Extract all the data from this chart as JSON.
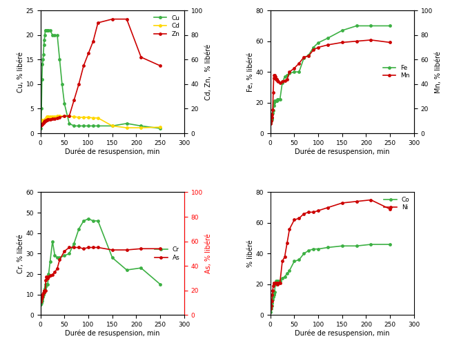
{
  "subplot1": {
    "xlabel": "Durée de resuspension, min",
    "ylabel_left": "Cu, % libéré",
    "ylabel_right": "Cd, Zn,  % libéré",
    "xlim": [
      0,
      300
    ],
    "ylim_left": [
      0,
      25
    ],
    "ylim_right": [
      0,
      100
    ],
    "yticks_left": [
      0,
      5,
      10,
      15,
      20,
      25
    ],
    "yticks_right": [
      0,
      20,
      40,
      60,
      80,
      100
    ],
    "Cu": {
      "x": [
        1,
        2,
        3,
        4,
        5,
        6,
        7,
        8,
        9,
        10,
        11,
        12,
        13,
        14,
        15,
        17,
        20,
        25,
        30,
        35,
        40,
        45,
        50,
        60,
        70,
        80,
        90,
        100,
        110,
        120,
        150,
        180,
        210,
        250
      ],
      "y": [
        1,
        5,
        11,
        14,
        15,
        16,
        18,
        19,
        20,
        21,
        21,
        21,
        21,
        21,
        21,
        21,
        21,
        20,
        20,
        20,
        15,
        10,
        6,
        2,
        1.5,
        1.5,
        1.5,
        1.5,
        1.5,
        1.5,
        1.5,
        2,
        1.5,
        1
      ],
      "color": "#3cb043",
      "label": "Cu"
    },
    "Cd": {
      "x": [
        1,
        2,
        3,
        4,
        5,
        6,
        7,
        8,
        9,
        10,
        11,
        12,
        13,
        14,
        15,
        17,
        20,
        25,
        30,
        35,
        40,
        50,
        60,
        70,
        80,
        90,
        100,
        110,
        120,
        150,
        180,
        210,
        250
      ],
      "y": [
        11,
        11,
        10.5,
        10,
        10,
        10,
        10.5,
        11,
        11.5,
        11.5,
        12,
        12.5,
        13,
        13.5,
        13.5,
        13.5,
        13.5,
        13.5,
        13.5,
        14,
        14,
        14,
        14,
        13.5,
        13,
        13,
        13,
        12.5,
        12.5,
        6,
        4.5,
        4.5,
        5
      ],
      "color": "#FFD700",
      "label": "Cd"
    },
    "Zn": {
      "x": [
        1,
        2,
        3,
        4,
        5,
        6,
        7,
        8,
        9,
        10,
        11,
        12,
        13,
        14,
        15,
        17,
        20,
        25,
        30,
        35,
        40,
        50,
        60,
        70,
        80,
        90,
        100,
        110,
        120,
        150,
        180,
        210,
        250
      ],
      "y": [
        6,
        7,
        7.5,
        7.5,
        8,
        8.5,
        9,
        9.5,
        10,
        10,
        10,
        10.5,
        11,
        11,
        11.5,
        11.5,
        11.5,
        12,
        12,
        12.5,
        13,
        14,
        14,
        27,
        40,
        55,
        65,
        75,
        90,
        93,
        93,
        62,
        55
      ],
      "color": "#cc0000",
      "label": "Zn"
    }
  },
  "subplot2": {
    "xlabel": "Durée de resuspension, min",
    "ylabel_left": "Fe, % libéré",
    "ylabel_right": "Mn, % libéré",
    "xlim": [
      0,
      300
    ],
    "ylim_left": [
      0,
      80
    ],
    "ylim_right": [
      0,
      100
    ],
    "yticks_left": [
      0,
      20,
      40,
      60,
      80
    ],
    "yticks_right": [
      0,
      20,
      40,
      60,
      80,
      100
    ],
    "Fe": {
      "x": [
        1,
        2,
        3,
        4,
        5,
        6,
        7,
        8,
        9,
        10,
        11,
        12,
        13,
        14,
        15,
        17,
        20,
        25,
        30,
        35,
        40,
        50,
        60,
        70,
        80,
        90,
        100,
        120,
        150,
        180,
        210,
        250
      ],
      "y": [
        7,
        8,
        9,
        10,
        13,
        15,
        18,
        20,
        21,
        21,
        21,
        21,
        21,
        21,
        22,
        22,
        22,
        33,
        37,
        38,
        39,
        40,
        40,
        49,
        51,
        56,
        59,
        62,
        67,
        70,
        70,
        70
      ],
      "color": "#3cb043",
      "label": "Fe"
    },
    "Mn": {
      "x": [
        1,
        2,
        3,
        4,
        5,
        6,
        7,
        8,
        9,
        10,
        11,
        12,
        13,
        14,
        15,
        17,
        20,
        25,
        30,
        35,
        40,
        50,
        60,
        70,
        80,
        90,
        100,
        120,
        150,
        180,
        210,
        250
      ],
      "y": [
        8,
        10,
        13,
        15,
        19,
        33,
        45,
        47,
        47,
        46,
        45,
        44,
        44,
        44,
        43,
        42,
        41,
        42,
        43,
        44,
        50,
        53,
        57,
        62,
        63,
        68,
        70,
        72,
        74,
        75,
        76,
        74
      ],
      "color": "#cc0000",
      "label": "Mn"
    }
  },
  "subplot3": {
    "xlabel": "Durée de resuspension, min",
    "ylabel_left": "Cr, % libéré",
    "ylabel_right": "As, % libéré",
    "xlim": [
      0,
      300
    ],
    "ylim_left": [
      0,
      60
    ],
    "ylim_right": [
      0,
      100
    ],
    "yticks_left": [
      0,
      10,
      20,
      30,
      40,
      50,
      60
    ],
    "yticks_right": [
      0,
      20,
      40,
      60,
      80,
      100
    ],
    "Cr": {
      "x": [
        1,
        2,
        3,
        4,
        5,
        6,
        7,
        8,
        9,
        10,
        11,
        12,
        13,
        14,
        15,
        17,
        20,
        25,
        30,
        35,
        40,
        50,
        60,
        70,
        80,
        90,
        100,
        110,
        120,
        150,
        180,
        210,
        250
      ],
      "y": [
        5,
        6,
        7,
        8,
        9,
        10,
        11,
        12,
        13,
        14,
        15,
        15,
        15,
        15,
        15,
        20,
        26,
        36,
        29,
        28,
        28,
        29,
        30,
        35,
        42,
        46,
        47,
        46,
        46,
        28,
        22,
        23,
        15
      ],
      "color": "#3cb043",
      "label": "Cr"
    },
    "As": {
      "x": [
        1,
        2,
        3,
        4,
        5,
        6,
        7,
        8,
        9,
        10,
        11,
        12,
        13,
        14,
        15,
        17,
        20,
        25,
        30,
        35,
        40,
        50,
        60,
        70,
        80,
        90,
        100,
        110,
        120,
        150,
        180,
        210,
        250
      ],
      "y": [
        11,
        13,
        15,
        16,
        17,
        18,
        19,
        20,
        20,
        20,
        28,
        31,
        31,
        30,
        30,
        31,
        32,
        33,
        35,
        38,
        45,
        52,
        55,
        55,
        55,
        54,
        55,
        55,
        55,
        53,
        53,
        54,
        54
      ],
      "color": "#cc0000",
      "label": "As"
    }
  },
  "subplot4": {
    "xlabel": "Durée de resuspension, min",
    "ylabel_left": "% libéré",
    "xlim": [
      0,
      300
    ],
    "ylim_left": [
      0,
      80
    ],
    "yticks_left": [
      0,
      20,
      40,
      60,
      80
    ],
    "Co": {
      "x": [
        1,
        2,
        3,
        4,
        5,
        6,
        7,
        8,
        9,
        10,
        11,
        12,
        13,
        14,
        15,
        17,
        20,
        25,
        30,
        35,
        40,
        50,
        60,
        70,
        80,
        90,
        100,
        120,
        150,
        180,
        210,
        250
      ],
      "y": [
        2,
        4,
        6,
        8,
        10,
        12,
        13,
        14,
        15,
        20,
        21,
        22,
        22,
        22,
        22,
        22,
        22,
        24,
        25,
        27,
        29,
        35,
        36,
        40,
        42,
        43,
        43,
        44,
        45,
        45,
        46,
        46
      ],
      "color": "#3cb043",
      "label": "Co"
    },
    "Ni": {
      "x": [
        1,
        2,
        3,
        4,
        5,
        6,
        7,
        8,
        9,
        10,
        11,
        12,
        13,
        14,
        15,
        17,
        20,
        25,
        30,
        35,
        40,
        50,
        60,
        70,
        80,
        90,
        100,
        120,
        150,
        180,
        210,
        250
      ],
      "y": [
        4,
        6,
        9,
        13,
        16,
        19,
        21,
        21,
        21,
        21,
        21,
        21,
        21,
        21,
        20,
        21,
        21,
        35,
        38,
        47,
        56,
        62,
        63,
        66,
        67,
        67,
        68,
        70,
        73,
        74,
        75,
        69
      ],
      "color": "#cc0000",
      "label": "Ni"
    }
  },
  "bg_color": "#f5f5f5"
}
